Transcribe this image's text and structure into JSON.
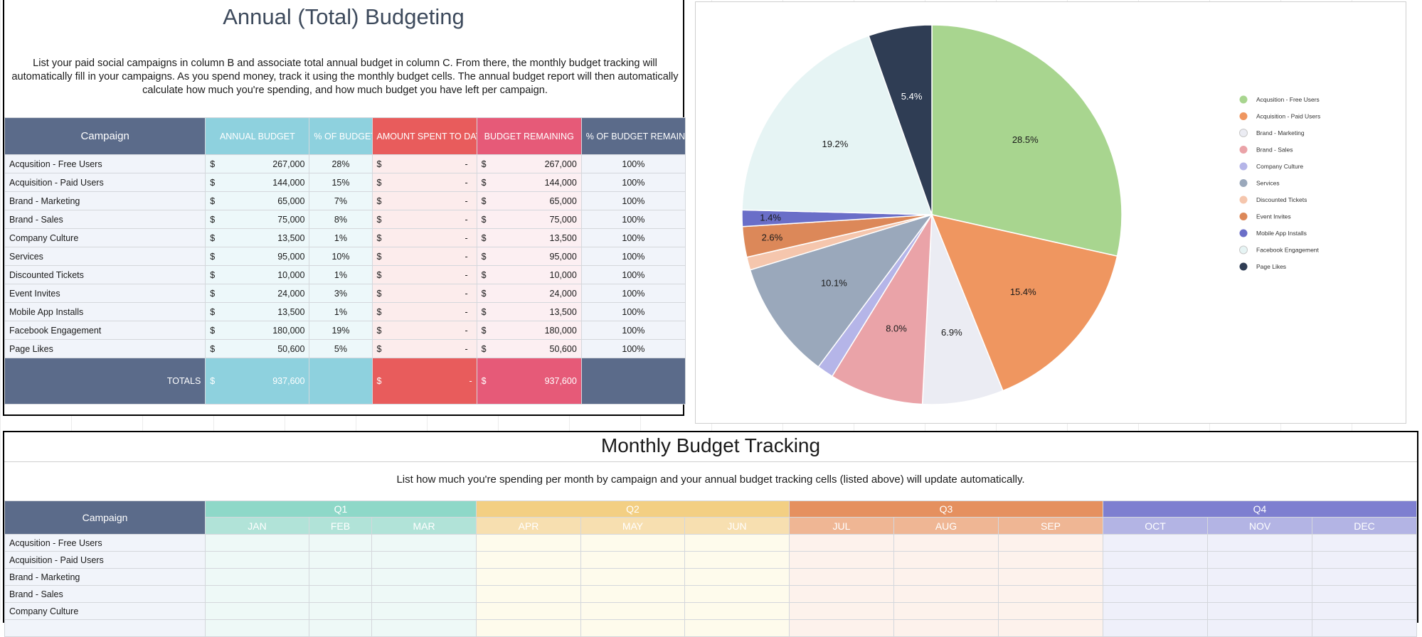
{
  "annual": {
    "title": "Annual (Total) Budgeting",
    "description": "List your paid social campaigns in column B and associate total annual budget in column C. From there, the monthly budget tracking will automatically fill in your campaigns. As you spend money, track it using the monthly budget cells. The annual budget report will then automatically calculate how much you're spending, and how much budget you have left per campaign.",
    "headers": {
      "campaign": "Campaign",
      "annual_budget": "ANNUAL BUDGET",
      "pct_budget": "% OF BUDGET",
      "amount_spent": "AMOUNT SPENT TO DATE",
      "budget_remaining": "BUDGET REMAINING",
      "pct_remaining": "% OF BUDGET REMAINING"
    },
    "currency": "$",
    "rows": [
      {
        "campaign": "Acqusition - Free Users",
        "budget": "267,000",
        "pct": "28%",
        "spent": "-",
        "remaining": "267,000",
        "pct_remaining": "100%"
      },
      {
        "campaign": "Acquisition - Paid Users",
        "budget": "144,000",
        "pct": "15%",
        "spent": "-",
        "remaining": "144,000",
        "pct_remaining": "100%"
      },
      {
        "campaign": "Brand - Marketing",
        "budget": "65,000",
        "pct": "7%",
        "spent": "-",
        "remaining": "65,000",
        "pct_remaining": "100%"
      },
      {
        "campaign": "Brand - Sales",
        "budget": "75,000",
        "pct": "8%",
        "spent": "-",
        "remaining": "75,000",
        "pct_remaining": "100%"
      },
      {
        "campaign": "Company Culture",
        "budget": "13,500",
        "pct": "1%",
        "spent": "-",
        "remaining": "13,500",
        "pct_remaining": "100%"
      },
      {
        "campaign": "Services",
        "budget": "95,000",
        "pct": "10%",
        "spent": "-",
        "remaining": "95,000",
        "pct_remaining": "100%"
      },
      {
        "campaign": "Discounted Tickets",
        "budget": "10,000",
        "pct": "1%",
        "spent": "-",
        "remaining": "10,000",
        "pct_remaining": "100%"
      },
      {
        "campaign": "Event Invites",
        "budget": "24,000",
        "pct": "3%",
        "spent": "-",
        "remaining": "24,000",
        "pct_remaining": "100%"
      },
      {
        "campaign": "Mobile App Installs",
        "budget": "13,500",
        "pct": "1%",
        "spent": "-",
        "remaining": "13,500",
        "pct_remaining": "100%"
      },
      {
        "campaign": "Facebook Engagement",
        "budget": "180,000",
        "pct": "19%",
        "spent": "-",
        "remaining": "180,000",
        "pct_remaining": "100%"
      },
      {
        "campaign": "Page Likes",
        "budget": "50,600",
        "pct": "5%",
        "spent": "-",
        "remaining": "50,600",
        "pct_remaining": "100%"
      }
    ],
    "totals": {
      "label": "TOTALS",
      "budget": "937,600",
      "spent": "-",
      "remaining": "937,600"
    }
  },
  "chart_data": {
    "type": "pie",
    "title": "",
    "legend_position": "right",
    "categories": [
      "Acqusition - Free Users",
      "Acquisition - Paid Users",
      "Brand - Marketing",
      "Brand - Sales",
      "Company Culture",
      "Services",
      "Discounted Tickets",
      "Event Invites",
      "Mobile App Installs",
      "Facebook Engagement",
      "Page Likes"
    ],
    "values": [
      28.5,
      15.4,
      6.9,
      8.0,
      1.4,
      10.1,
      1.1,
      2.6,
      1.4,
      19.2,
      5.4
    ],
    "labels": [
      "28.5%",
      "15.4%",
      "6.9%",
      "8.0%",
      "",
      "10.1%",
      "",
      "2.6%",
      "1.4%",
      "19.2%",
      "5.4%"
    ],
    "colors": [
      "#a8d58f",
      "#ef9660",
      "#ebecf3",
      "#eaa3a8",
      "#b5b5e8",
      "#9aa8bb",
      "#f5c6ad",
      "#dc8859",
      "#6a6ec8",
      "#e6f4f4",
      "#2f3d54"
    ]
  },
  "monthly": {
    "title": "Monthly Budget Tracking",
    "description": "List how much you're spending per month by campaign and your annual budget tracking cells (listed above) will update automatically.",
    "campaign_header": "Campaign",
    "quarters": [
      {
        "name": "Q1",
        "months": [
          "JAN",
          "FEB",
          "MAR"
        ]
      },
      {
        "name": "Q2",
        "months": [
          "APR",
          "MAY",
          "JUN"
        ]
      },
      {
        "name": "Q3",
        "months": [
          "JUL",
          "AUG",
          "SEP"
        ]
      },
      {
        "name": "Q4",
        "months": [
          "OCT",
          "NOV",
          "DEC"
        ]
      }
    ],
    "rows": [
      "Acqusition - Free Users",
      "Acquisition - Paid Users",
      "Brand - Marketing",
      "Brand - Sales",
      "Company Culture",
      ""
    ]
  }
}
